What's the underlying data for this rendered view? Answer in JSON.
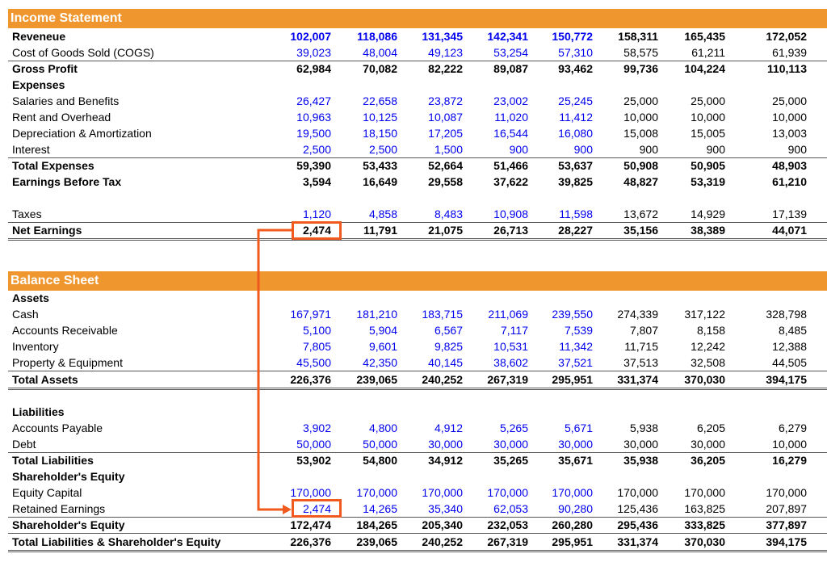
{
  "income_statement": {
    "title": "Income Statement",
    "rows": [
      {
        "label": "Reveneue",
        "style": "bold",
        "values": [
          "102,007",
          "118,086",
          "131,345",
          "142,341",
          "150,772",
          "158,311",
          "165,435",
          "172,052"
        ],
        "blue_cols": 5
      },
      {
        "label": "Cost of Goods Sold (COGS)",
        "style": "normal",
        "values": [
          "39,023",
          "48,004",
          "49,123",
          "53,254",
          "57,310",
          "58,575",
          "61,211",
          "61,939"
        ],
        "blue_cols": 5
      },
      {
        "label": "Gross Profit",
        "style": "bold",
        "values": [
          "62,984",
          "70,082",
          "82,222",
          "89,087",
          "93,462",
          "99,736",
          "104,224",
          "110,113"
        ],
        "blue_cols": 0
      },
      {
        "label": "Expenses",
        "style": "bold",
        "values": [],
        "blue_cols": 0
      },
      {
        "label": "Salaries and Benefits",
        "style": "normal",
        "values": [
          "26,427",
          "22,658",
          "23,872",
          "23,002",
          "25,245",
          "25,000",
          "25,000",
          "25,000"
        ],
        "blue_cols": 5
      },
      {
        "label": "Rent and Overhead",
        "style": "normal",
        "values": [
          "10,963",
          "10,125",
          "10,087",
          "11,020",
          "11,412",
          "10,000",
          "10,000",
          "10,000"
        ],
        "blue_cols": 5
      },
      {
        "label": "Depreciation & Amortization",
        "style": "normal",
        "values": [
          "19,500",
          "18,150",
          "17,205",
          "16,544",
          "16,080",
          "15,008",
          "15,005",
          "13,003"
        ],
        "blue_cols": 5
      },
      {
        "label": "Interest",
        "style": "normal",
        "values": [
          "2,500",
          "2,500",
          "1,500",
          "900",
          "900",
          "900",
          "900",
          "900"
        ],
        "blue_cols": 5
      },
      {
        "label": "Total Expenses",
        "style": "bold",
        "values": [
          "59,390",
          "53,433",
          "52,664",
          "51,466",
          "53,637",
          "50,908",
          "50,905",
          "48,903"
        ],
        "blue_cols": 0
      },
      {
        "label": "Earnings Before Tax",
        "style": "bold",
        "values": [
          "3,594",
          "16,649",
          "29,558",
          "37,622",
          "39,825",
          "48,827",
          "53,319",
          "61,210"
        ],
        "blue_cols": 0
      },
      {
        "label": "",
        "style": "normal",
        "values": [],
        "blue_cols": 0
      },
      {
        "label": "Taxes",
        "style": "normal",
        "values": [
          "1,120",
          "4,858",
          "8,483",
          "10,908",
          "11,598",
          "13,672",
          "14,929",
          "17,139"
        ],
        "blue_cols": 5
      },
      {
        "label": "Net Earnings",
        "style": "bold",
        "values": [
          "2,474",
          "11,791",
          "21,075",
          "26,713",
          "28,227",
          "35,156",
          "38,389",
          "44,071"
        ],
        "blue_cols": 0
      }
    ]
  },
  "balance_sheet": {
    "title": "Balance Sheet",
    "rows": [
      {
        "label": "Assets",
        "style": "bold",
        "values": [],
        "blue_cols": 0
      },
      {
        "label": "Cash",
        "style": "normal",
        "values": [
          "167,971",
          "181,210",
          "183,715",
          "211,069",
          "239,550",
          "274,339",
          "317,122",
          "328,798"
        ],
        "blue_cols": 5
      },
      {
        "label": "Accounts Receivable",
        "style": "normal",
        "values": [
          "5,100",
          "5,904",
          "6,567",
          "7,117",
          "7,539",
          "7,807",
          "8,158",
          "8,485"
        ],
        "blue_cols": 5
      },
      {
        "label": "Inventory",
        "style": "normal",
        "values": [
          "7,805",
          "9,601",
          "9,825",
          "10,531",
          "11,342",
          "11,715",
          "12,242",
          "12,388"
        ],
        "blue_cols": 5
      },
      {
        "label": "Property & Equipment",
        "style": "normal",
        "values": [
          "45,500",
          "42,350",
          "40,145",
          "38,602",
          "37,521",
          "37,513",
          "32,508",
          "44,505"
        ],
        "blue_cols": 5
      },
      {
        "label": "Total Assets",
        "style": "bold",
        "values": [
          "226,376",
          "239,065",
          "240,252",
          "267,319",
          "295,951",
          "331,374",
          "370,030",
          "394,175"
        ],
        "blue_cols": 0
      },
      {
        "label": "",
        "style": "normal",
        "values": [],
        "blue_cols": 0
      },
      {
        "label": "Liabilities",
        "style": "bold",
        "values": [],
        "blue_cols": 0
      },
      {
        "label": "Accounts Payable",
        "style": "normal",
        "values": [
          "3,902",
          "4,800",
          "4,912",
          "5,265",
          "5,671",
          "5,938",
          "6,205",
          "6,279"
        ],
        "blue_cols": 5
      },
      {
        "label": "Debt",
        "style": "normal",
        "values": [
          "50,000",
          "50,000",
          "30,000",
          "30,000",
          "30,000",
          "30,000",
          "30,000",
          "10,000"
        ],
        "blue_cols": 5
      },
      {
        "label": "Total Liabilities",
        "style": "bold",
        "values": [
          "53,902",
          "54,800",
          "34,912",
          "35,265",
          "35,671",
          "35,938",
          "36,205",
          "16,279"
        ],
        "blue_cols": 0
      },
      {
        "label": "Shareholder's Equity",
        "style": "bold",
        "values": [],
        "blue_cols": 0
      },
      {
        "label": "Equity Capital",
        "style": "normal",
        "values": [
          "170,000",
          "170,000",
          "170,000",
          "170,000",
          "170,000",
          "170,000",
          "170,000",
          "170,000"
        ],
        "blue_cols": 5
      },
      {
        "label": "Retained Earnings",
        "style": "normal",
        "values": [
          "2,474",
          "14,265",
          "35,340",
          "62,053",
          "90,280",
          "125,436",
          "163,825",
          "207,897"
        ],
        "blue_cols": 5
      },
      {
        "label": "Shareholder's Equity",
        "style": "bold",
        "values": [
          "172,474",
          "184,265",
          "205,340",
          "232,053",
          "260,280",
          "295,436",
          "333,825",
          "377,897"
        ],
        "blue_cols": 0
      },
      {
        "label": "Total Liabilities & Shareholder's Equity",
        "style": "bold",
        "values": [
          "226,376",
          "239,065",
          "240,252",
          "267,319",
          "295,951",
          "331,374",
          "370,030",
          "394,175"
        ],
        "blue_cols": 0
      }
    ]
  },
  "colors": {
    "header_bg": "#f0962e",
    "input_blue": "#0000ee",
    "highlight": "#f05a1e"
  }
}
